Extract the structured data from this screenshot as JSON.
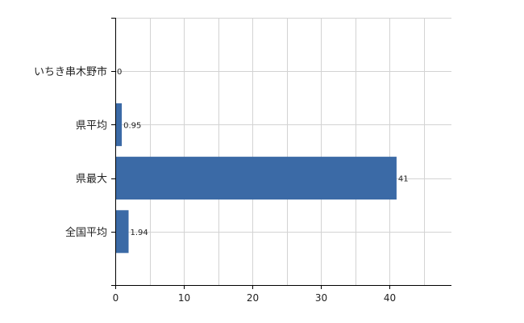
{
  "chart_data": {
    "type": "bar",
    "orientation": "horizontal",
    "categories": [
      "いちき串木野市",
      "県平均",
      "県最大",
      "全国平均"
    ],
    "values": [
      0,
      0.95,
      41,
      1.94
    ],
    "value_labels": [
      "0",
      "0.95",
      "41",
      "1.94"
    ],
    "title": "",
    "xlabel": "",
    "ylabel": "",
    "xlim": [
      0,
      49
    ],
    "x_ticks": [
      "0",
      "10",
      "20",
      "30",
      "40"
    ],
    "grid": true,
    "legend": "none",
    "bar_color": "#3b6aa6",
    "grid_color": "#d3d3d3",
    "axis_color": "#000000"
  }
}
